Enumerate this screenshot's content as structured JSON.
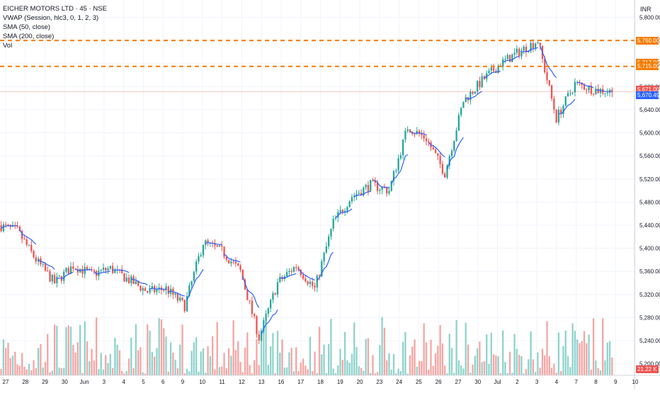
{
  "legend": {
    "symbol": "EICHER MOTORS LTD · 45 · NSE",
    "vwap": "VWAP (Session, hlc3, 0, 1, 2, 3)",
    "sma50": "SMA (50, close)",
    "sma200": "SMA (200, close)",
    "vol": "Vol"
  },
  "currency": "INR",
  "price_tags": {
    "line_upper": "5,760.00",
    "sma_upper": "5,717.00",
    "line_lower": "5,715.00",
    "last_price": "5,671.00",
    "vwap_value": "5,670.49",
    "volume": "21.22 K"
  },
  "colors": {
    "up": "#26a69a",
    "down": "#ef5350",
    "vol_up": "#8fd3cc",
    "vol_down": "#f5a5a3",
    "vwap": "#2962ff",
    "level": "#f57c00",
    "last_price_line": "#ef5350"
  },
  "chart_data": {
    "type": "candlestick",
    "x_ticks": [
      "27",
      "28",
      "29",
      "30",
      "Jun",
      "3",
      "4",
      "5",
      "6",
      "9",
      "10",
      "11",
      "12",
      "13",
      "16",
      "17",
      "18",
      "19",
      "20",
      "23",
      "24",
      "25",
      "26",
      "27",
      "30",
      "Jul",
      "2",
      "3",
      "4",
      "7",
      "8",
      "9",
      "10"
    ],
    "y_ticks": [
      "5,800.00",
      "5,760.00",
      "5,720.00",
      "5,680.00",
      "5,640.00",
      "5,600.00",
      "5,560.00",
      "5,520.00",
      "5,480.00",
      "5,440.00",
      "5,400.00",
      "5,360.00",
      "5,320.00",
      "5,280.00",
      "5,240.00",
      "5,200.00"
    ],
    "ylim": [
      5180,
      5830
    ],
    "horizontal_levels": [
      5760,
      5715
    ],
    "last_price": 5671,
    "vwap_last": 5670.49,
    "daily_closes": [
      5430,
      5380,
      5340,
      5370,
      5355,
      5365,
      5345,
      5325,
      5330,
      5300,
      5410,
      5395,
      5360,
      5245,
      5340,
      5370,
      5330,
      5445,
      5490,
      5510,
      5500,
      5610,
      5590,
      5530,
      5655,
      5690,
      5720,
      5740,
      5760,
      5625,
      5685,
      5675,
      5671
    ]
  }
}
